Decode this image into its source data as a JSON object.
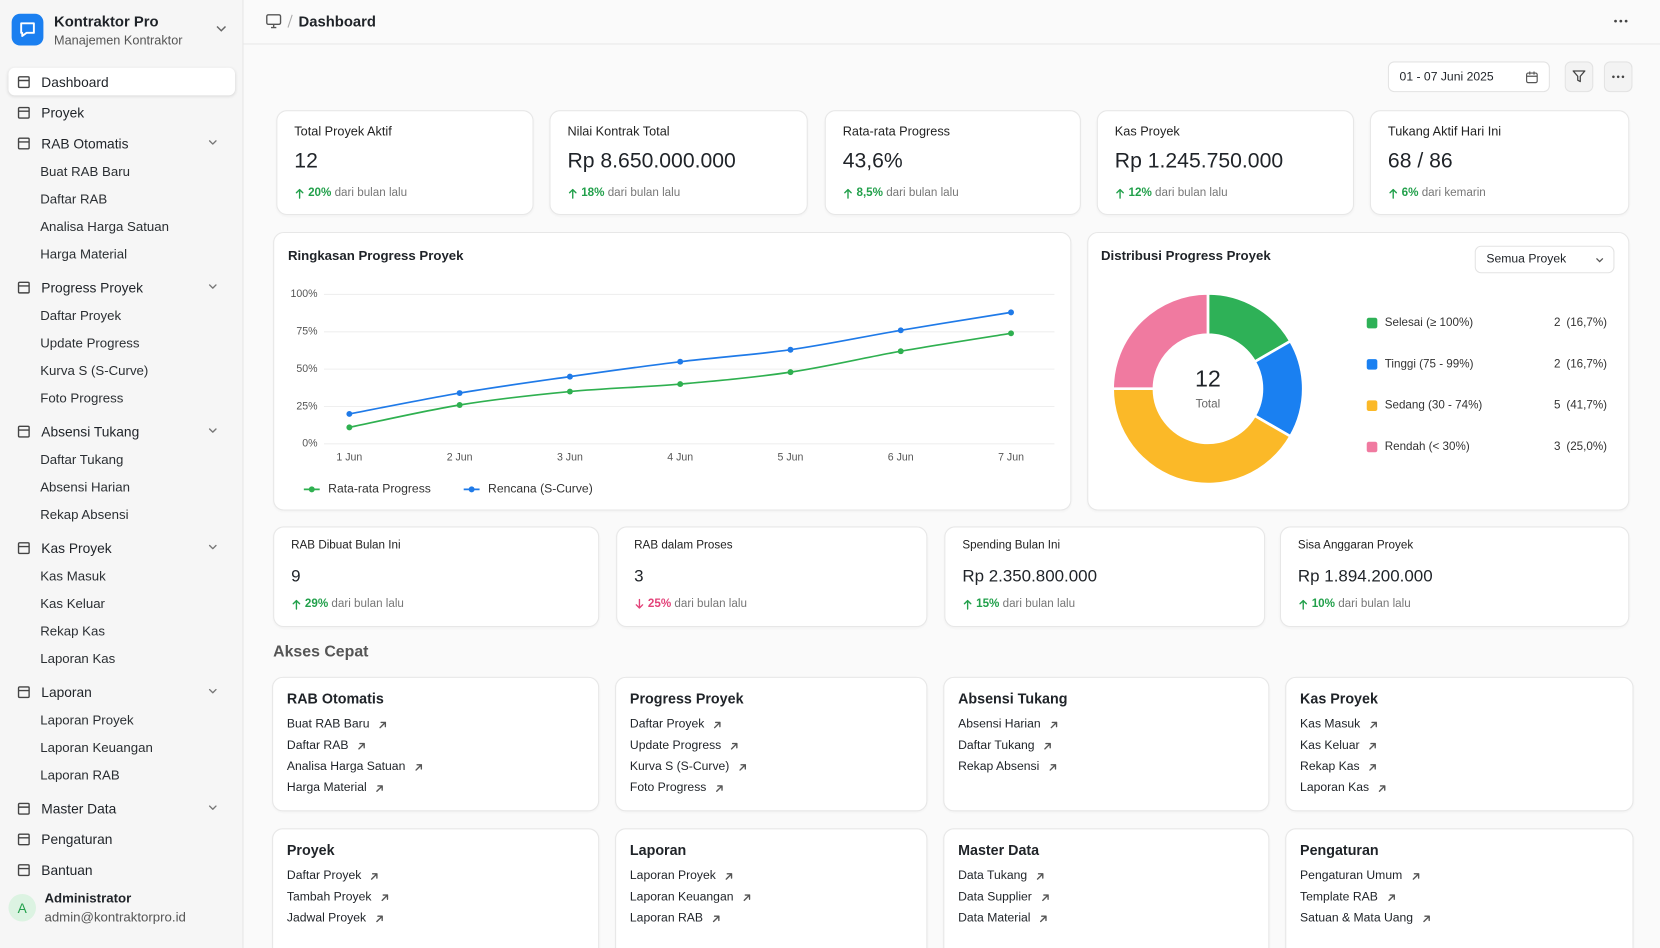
{
  "sidebar": {
    "app_name": "Kontraktor Pro",
    "app_subtitle": "Manajemen Kontraktor",
    "menu": [
      {
        "label": "Dashboard",
        "active": true
      },
      {
        "label": "Proyek"
      },
      {
        "label": "RAB Otomatis",
        "collapsible": true,
        "children": [
          "Buat RAB Baru",
          "Daftar RAB",
          "Analisa Harga Satuan",
          "Harga Material"
        ]
      },
      {
        "label": "Progress Proyek",
        "collapsible": true,
        "children": [
          "Daftar Proyek",
          "Update Progress",
          "Kurva S (S-Curve)",
          "Foto Progress"
        ]
      },
      {
        "label": "Absensi Tukang",
        "collapsible": true,
        "children": [
          "Daftar Tukang",
          "Absensi Harian",
          "Rekap Absensi"
        ]
      },
      {
        "label": "Kas Proyek",
        "collapsible": true,
        "children": [
          "Kas Masuk",
          "Kas Keluar",
          "Rekap Kas",
          "Laporan Kas"
        ]
      },
      {
        "label": "Laporan",
        "collapsible": true,
        "children": [
          "Laporan Proyek",
          "Laporan Keuangan",
          "Laporan RAB"
        ]
      },
      {
        "label": "Master Data",
        "collapsible": true
      },
      {
        "label": "Pengaturan"
      },
      {
        "label": "Bantuan"
      }
    ],
    "user": {
      "initial": "A",
      "name": "Administrator",
      "email": "admin@kontraktorpro.id"
    }
  },
  "header": {
    "breadcrumb": "Dashboard",
    "date_range": "01 - 07 Juni 2025"
  },
  "kpis": [
    {
      "label": "Total Proyek Aktif",
      "value": "12",
      "change": "20%",
      "note": "dari bulan lalu",
      "trend": "up"
    },
    {
      "label": "Nilai Kontrak Total",
      "value": "Rp 8.650.000.000",
      "change": "18%",
      "note": "dari bulan lalu",
      "trend": "up"
    },
    {
      "label": "Rata-rata Progress",
      "value": "43,6%",
      "change": "8,5%",
      "note": "dari bulan lalu",
      "trend": "up"
    },
    {
      "label": "Kas Proyek",
      "value": "Rp 1.245.750.000",
      "change": "12%",
      "note": "dari bulan lalu",
      "trend": "up"
    },
    {
      "label": "Tukang Aktif Hari Ini",
      "value": "68 / 86",
      "change": "6%",
      "note": "dari kemarin",
      "trend": "up"
    }
  ],
  "chart_data": [
    {
      "type": "line",
      "title": "Ringkasan Progress Proyek",
      "categories": [
        "1 Jun",
        "2 Jun",
        "3 Jun",
        "4 Jun",
        "5 Jun",
        "6 Jun",
        "7 Jun"
      ],
      "series": [
        {
          "name": "Rata-rata Progress",
          "color": "#2fb050",
          "values": [
            11,
            26,
            35,
            40,
            48,
            62,
            74
          ]
        },
        {
          "name": "Rencana (S-Curve)",
          "color": "#1f7ae8",
          "values": [
            20,
            34,
            45,
            55,
            63,
            76,
            88
          ]
        }
      ],
      "ylim": [
        0,
        100
      ],
      "yticks": [
        {
          "value": 0,
          "label": "0%"
        },
        {
          "value": 25,
          "label": "25%"
        },
        {
          "value": 50,
          "label": "50%"
        },
        {
          "value": 75,
          "label": "75%"
        },
        {
          "value": 100,
          "label": "100%"
        }
      ],
      "grid": true,
      "legend": "bottom-left"
    },
    {
      "type": "donut",
      "title": "Distribusi Progress Proyek",
      "filter": "Semua Proyek",
      "categories": [
        "Selesai (≥ 100%)",
        "Tinggi (75 - 99%)",
        "Sedang (30 - 74%)",
        "Rendah (< 30%)"
      ],
      "values": [
        2,
        2,
        5,
        3
      ],
      "share_labels": [
        "(16,7%)",
        "(16,7%)",
        "(41,7%)",
        "(25,0%)"
      ],
      "colors": [
        "#2eb157",
        "#1a80f1",
        "#fbb928",
        "#f07aa0"
      ],
      "center_value": 12,
      "center_label": "Total",
      "legend": "right"
    }
  ],
  "stats": [
    {
      "label": "RAB Dibuat Bulan Ini",
      "value": "9",
      "change": "29%",
      "note": "dari bulan lalu",
      "trend": "up"
    },
    {
      "label": "RAB dalam Proses",
      "value": "3",
      "change": "25%",
      "note": "dari bulan lalu",
      "trend": "down"
    },
    {
      "label": "Spending Bulan Ini",
      "value": "Rp 2.350.800.000",
      "change": "15%",
      "note": "dari bulan lalu",
      "trend": "up"
    },
    {
      "label": "Sisa Anggaran Proyek",
      "value": "Rp 1.894.200.000",
      "change": "10%",
      "note": "dari bulan lalu",
      "trend": "up"
    }
  ],
  "quick_access": {
    "title": "Akses Cepat",
    "groups": [
      {
        "title": "RAB Otomatis",
        "links": [
          "Buat RAB Baru",
          "Daftar RAB",
          "Analisa Harga Satuan",
          "Harga Material"
        ]
      },
      {
        "title": "Progress Proyek",
        "links": [
          "Daftar Proyek",
          "Update Progress",
          "Kurva S (S-Curve)",
          "Foto Progress"
        ]
      },
      {
        "title": "Absensi Tukang",
        "links": [
          "Absensi Harian",
          "Daftar Tukang",
          "Rekap Absensi"
        ]
      },
      {
        "title": "Kas Proyek",
        "links": [
          "Kas Masuk",
          "Kas Keluar",
          "Rekap Kas",
          "Laporan Kas"
        ]
      },
      {
        "title": "Proyek",
        "links": [
          "Daftar Proyek",
          "Tambah Proyek",
          "Jadwal Proyek"
        ]
      },
      {
        "title": "Laporan",
        "links": [
          "Laporan Proyek",
          "Laporan Keuangan",
          "Laporan RAB"
        ]
      },
      {
        "title": "Master Data",
        "links": [
          "Data Tukang",
          "Data Supplier",
          "Data Material"
        ]
      },
      {
        "title": "Pengaturan",
        "links": [
          "Pengaturan Umum",
          "Template RAB",
          "Satuan & Mata Uang"
        ]
      }
    ]
  }
}
